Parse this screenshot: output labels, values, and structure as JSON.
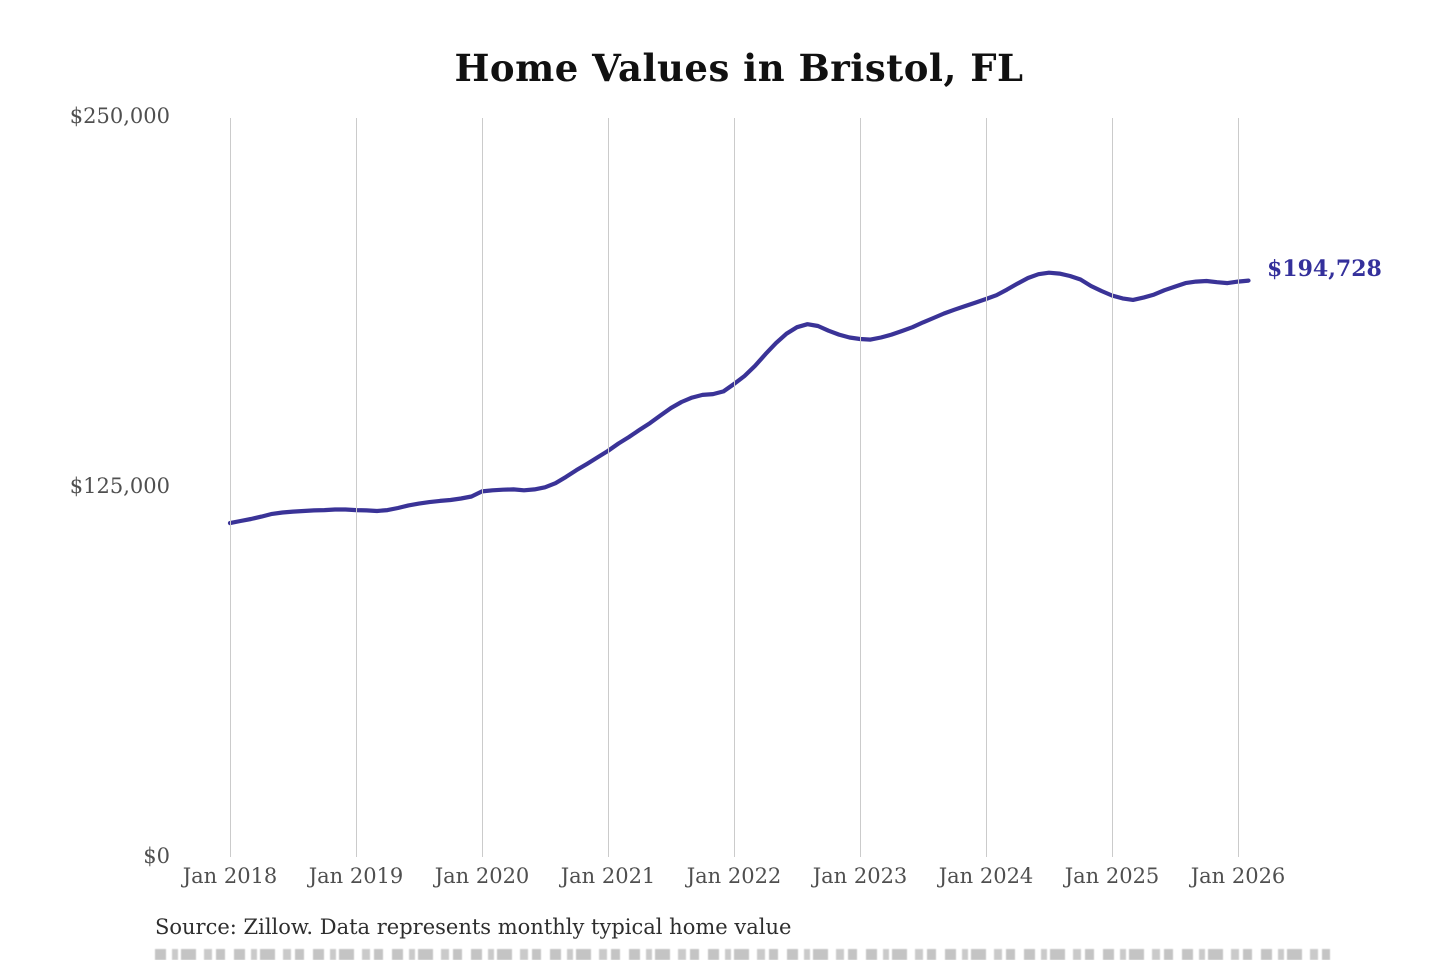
{
  "page": {
    "background_color": "#ffffff"
  },
  "chart_data": {
    "type": "line",
    "title": "Home Values in Bristol, FL",
    "xlabel": "",
    "ylabel": "",
    "x_tick_labels": [
      "Jan 2018",
      "Jan 2019",
      "Jan 2020",
      "Jan 2021",
      "Jan 2022",
      "Jan 2023",
      "Jan 2024",
      "Jan 2025",
      "Jan 2026"
    ],
    "y_tick_labels": [
      "$0",
      "$125,000",
      "$250,000"
    ],
    "y_tick_values": [
      0,
      125000,
      250000
    ],
    "ylim": [
      0,
      250000
    ],
    "grid": "vertical-yearly-gridlines",
    "legend_position": "none",
    "series": [
      {
        "name": "Typical home value",
        "color": "#3a3397",
        "x_start": "2018-01",
        "x_end": "2026-02",
        "x_interval": "monthly",
        "months": [
          "2018-01",
          "2018-02",
          "2018-03",
          "2018-04",
          "2018-05",
          "2018-06",
          "2018-07",
          "2018-08",
          "2018-09",
          "2018-10",
          "2018-11",
          "2018-12",
          "2019-01",
          "2019-02",
          "2019-03",
          "2019-04",
          "2019-05",
          "2019-06",
          "2019-07",
          "2019-08",
          "2019-09",
          "2019-10",
          "2019-11",
          "2019-12",
          "2020-01",
          "2020-02",
          "2020-03",
          "2020-04",
          "2020-05",
          "2020-06",
          "2020-07",
          "2020-08",
          "2020-09",
          "2020-10",
          "2020-11",
          "2020-12",
          "2021-01",
          "2021-02",
          "2021-03",
          "2021-04",
          "2021-05",
          "2021-06",
          "2021-07",
          "2021-08",
          "2021-09",
          "2021-10",
          "2021-11",
          "2021-12",
          "2022-01",
          "2022-02",
          "2022-03",
          "2022-04",
          "2022-05",
          "2022-06",
          "2022-07",
          "2022-08",
          "2022-09",
          "2022-10",
          "2022-11",
          "2022-12",
          "2023-01",
          "2023-02",
          "2023-03",
          "2023-04",
          "2023-05",
          "2023-06",
          "2023-07",
          "2023-08",
          "2023-09",
          "2023-10",
          "2023-11",
          "2023-12",
          "2024-01",
          "2024-02",
          "2024-03",
          "2024-04",
          "2024-05",
          "2024-06",
          "2024-07",
          "2024-08",
          "2024-09",
          "2024-10",
          "2024-11",
          "2024-12",
          "2025-01",
          "2025-02",
          "2025-03",
          "2025-04",
          "2025-05",
          "2025-06",
          "2025-07",
          "2025-08",
          "2025-09",
          "2025-10",
          "2025-11",
          "2025-12",
          "2026-01",
          "2026-02"
        ],
        "values": [
          112800,
          113500,
          114200,
          115000,
          115900,
          116400,
          116700,
          116900,
          117100,
          117200,
          117400,
          117400,
          117200,
          117100,
          116900,
          117200,
          117900,
          118800,
          119400,
          119900,
          120300,
          120600,
          121100,
          121800,
          123500,
          123900,
          124100,
          124200,
          123900,
          124200,
          124900,
          126300,
          128400,
          130700,
          132800,
          135000,
          137200,
          139700,
          141900,
          144300,
          146600,
          149200,
          151700,
          153700,
          155200,
          156100,
          156400,
          157300,
          159800,
          162500,
          165900,
          169900,
          173600,
          176800,
          179000,
          180000,
          179400,
          177800,
          176500,
          175500,
          175000,
          174800,
          175500,
          176500,
          177700,
          179000,
          180600,
          182100,
          183600,
          184900,
          186100,
          187300,
          188500,
          189800,
          191700,
          193700,
          195600,
          196900,
          197400,
          197100,
          196300,
          195100,
          192900,
          191200,
          189700,
          188700,
          188200,
          189000,
          190000,
          191500,
          192700,
          193900,
          194400,
          194600,
          194200,
          193900,
          194400,
          194728
        ]
      }
    ],
    "end_label": {
      "text": "$194,728",
      "value": 194728,
      "color": "#34309b"
    }
  },
  "source": {
    "text": "Source: Zillow. Data represents monthly typical home value"
  },
  "colors": {
    "line": "#3a3397",
    "gridline": "#cbcbcb",
    "tick_text": "#4f4f4f",
    "title_text": "#111111",
    "source_text": "#2e2e2e"
  }
}
